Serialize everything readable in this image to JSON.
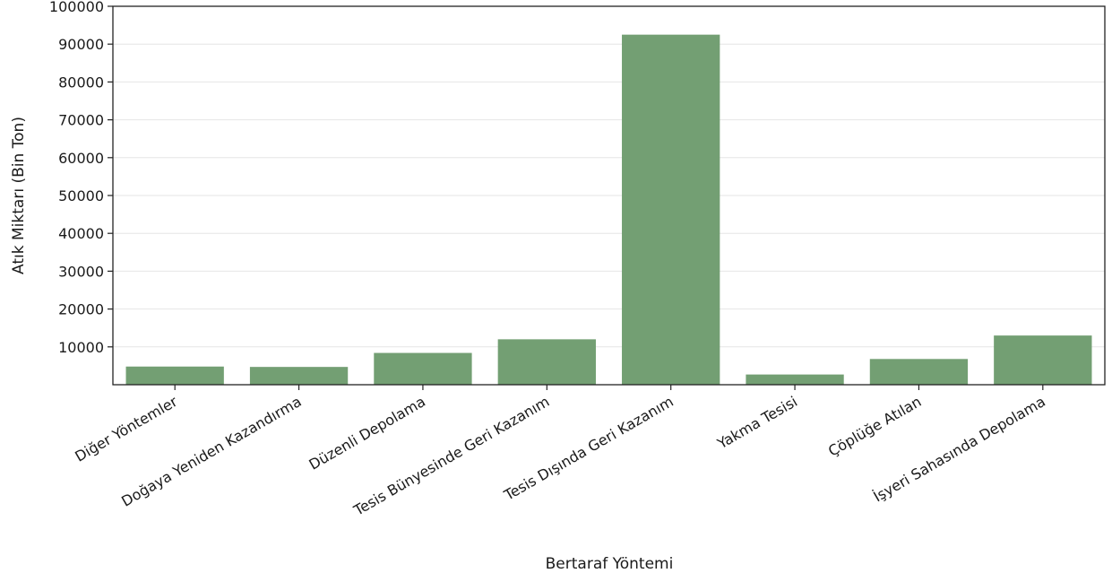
{
  "chart_data": {
    "type": "bar",
    "title": "",
    "xlabel": "Bertaraf Yöntemi",
    "ylabel": "Atık Miktarı (Bin Ton)",
    "categories": [
      "Diğer Yöntemler",
      "Doğaya Yeniden Kazandırma",
      "Düzenli Depolama",
      "Tesis Bünyesinde Geri Kazanım",
      "Tesis Dışında Geri Kazanım",
      "Yakma Tesisi",
      "Çöplüğe Atılan",
      "İşyeri Sahasında Depolama"
    ],
    "values": [
      4800,
      4700,
      8400,
      12000,
      92500,
      2700,
      6800,
      13000
    ],
    "ylim": [
      0,
      100000
    ],
    "yticks": [
      10000,
      20000,
      30000,
      40000,
      50000,
      60000,
      70000,
      80000,
      90000,
      100000
    ],
    "bar_color": "#739f73",
    "grid": "horizontal",
    "legend": "none"
  }
}
